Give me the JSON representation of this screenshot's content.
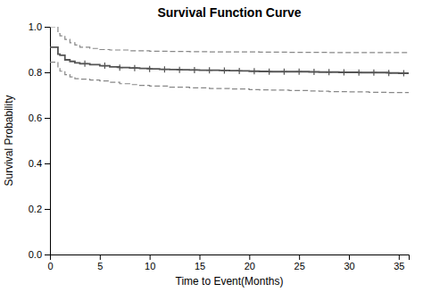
{
  "chart_data": {
    "type": "line",
    "title": "Survival Function Curve",
    "xlabel": "Time to Event(Months)",
    "ylabel": "Survival Probability",
    "xlim": [
      0,
      36
    ],
    "ylim": [
      0.0,
      1.0
    ],
    "xticks": [
      0,
      5,
      10,
      15,
      20,
      25,
      30,
      35
    ],
    "yticks": [
      {
        "value": 0.0,
        "label": "0.0"
      },
      0.2,
      0.4,
      0.6,
      0.8,
      {
        "value": 1.0,
        "label": "1.0"
      }
    ],
    "grid": false,
    "series": [
      {
        "type": "step",
        "line_style": "solid",
        "color": "#555555",
        "x": [
          0,
          0.3,
          0.8,
          1.0,
          1.5,
          2.0,
          2.5,
          3.0,
          4.0,
          5.0,
          6.0,
          7.0,
          8.0,
          9.0,
          10.0,
          11.0,
          12.0,
          13.0,
          14.0,
          15.0,
          16.0,
          17.0,
          18.0,
          19.0,
          20.0,
          21.0,
          22.0,
          23.0,
          24.0,
          25.0,
          26.0,
          27.0,
          28.0,
          29.0,
          30.0,
          31.0,
          32.0,
          33.0,
          34.0,
          35.0,
          36.0
        ],
        "values": [
          0.91,
          0.91,
          0.88,
          0.875,
          0.855,
          0.848,
          0.842,
          0.838,
          0.834,
          0.829,
          0.824,
          0.821,
          0.819,
          0.817,
          0.815,
          0.813,
          0.812,
          0.811,
          0.81,
          0.809,
          0.809,
          0.808,
          0.807,
          0.806,
          0.805,
          0.804,
          0.803,
          0.803,
          0.803,
          0.803,
          0.802,
          0.801,
          0.801,
          0.8,
          0.8,
          0.799,
          0.799,
          0.799,
          0.797,
          0.796,
          0.795
        ]
      },
      {
        "type": "step",
        "line_style": "dashed",
        "color": "#888888",
        "x": [
          0,
          0.2,
          0.5,
          0.8,
          1.0,
          1.5,
          2.0,
          2.5,
          3.0,
          4.0,
          5.0,
          6.0,
          8.0,
          10.0,
          12.0,
          14.0,
          16.0,
          18.0,
          20.0,
          21.0,
          22.0,
          24.0,
          26.0,
          28.0,
          30.0,
          32.0,
          34.0,
          36.0
        ],
        "values": [
          1.0,
          1.0,
          1.0,
          0.97,
          0.96,
          0.945,
          0.93,
          0.92,
          0.91,
          0.905,
          0.9,
          0.898,
          0.895,
          0.893,
          0.892,
          0.891,
          0.89,
          0.89,
          0.89,
          0.889,
          0.889,
          0.888,
          0.888,
          0.887,
          0.887,
          0.887,
          0.887,
          0.886
        ]
      },
      {
        "type": "step",
        "line_style": "dashed",
        "color": "#888888",
        "x": [
          0,
          0.3,
          0.8,
          1.0,
          1.5,
          2.0,
          2.5,
          3.0,
          4.0,
          5.0,
          6.0,
          7.0,
          8.0,
          9.0,
          10.0,
          12.0,
          14.0,
          16.0,
          18.0,
          20.0,
          21.0,
          22.0,
          24.0,
          26.0,
          27.0,
          28.0,
          30.0,
          32.0,
          33.0,
          34.0,
          36.0
        ],
        "values": [
          0.845,
          0.845,
          0.82,
          0.805,
          0.79,
          0.78,
          0.772,
          0.77,
          0.766,
          0.762,
          0.756,
          0.75,
          0.746,
          0.743,
          0.74,
          0.735,
          0.732,
          0.729,
          0.727,
          0.724,
          0.723,
          0.722,
          0.72,
          0.718,
          0.717,
          0.715,
          0.714,
          0.712,
          0.712,
          0.711,
          0.71
        ]
      },
      {
        "type": "scatter",
        "marker": "plus",
        "color": "#555555",
        "x": [
          3.5,
          5.5,
          7.0,
          8.5,
          10.0,
          11.5,
          13.0,
          14.5,
          16.0,
          17.5,
          19.0,
          20.5,
          22.0,
          23.5,
          25.0,
          26.5,
          28.0,
          29.5,
          31.0,
          32.5,
          34.0,
          35.5
        ],
        "values": [
          0.838,
          0.829,
          0.821,
          0.819,
          0.815,
          0.813,
          0.811,
          0.81,
          0.809,
          0.808,
          0.806,
          0.805,
          0.803,
          0.803,
          0.803,
          0.802,
          0.801,
          0.8,
          0.799,
          0.799,
          0.797,
          0.796
        ]
      }
    ]
  }
}
